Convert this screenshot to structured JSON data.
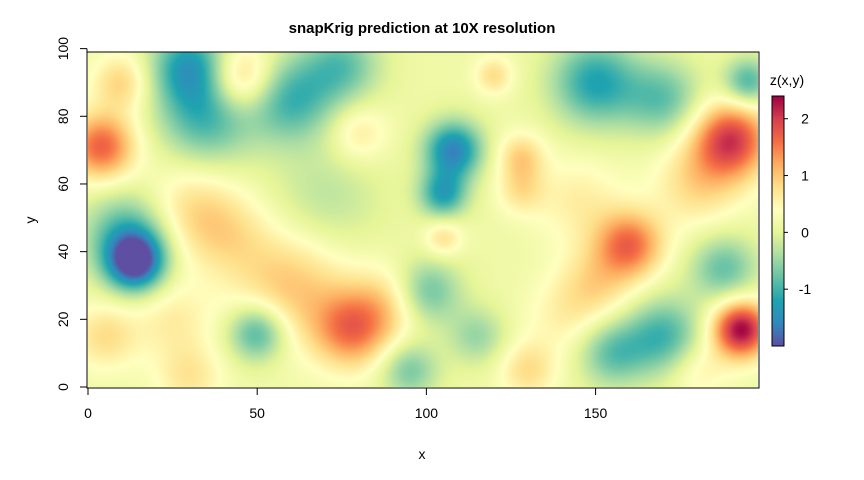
{
  "chart_data": {
    "type": "heatmap",
    "title": "snapKrig prediction at 10X resolution",
    "xlabel": "x",
    "ylabel": "y",
    "xlim": [
      0,
      198
    ],
    "ylim": [
      0,
      99
    ],
    "x_ticks": [
      0,
      50,
      100,
      150
    ],
    "x_tick_labels": [
      "0",
      "50",
      "100",
      "150"
    ],
    "y_ticks": [
      0,
      20,
      40,
      60,
      80,
      100
    ],
    "y_tick_labels": [
      "0",
      "20",
      "40",
      "60",
      "80",
      "100"
    ],
    "colorbar": {
      "label": "z(x,y)",
      "range": [
        -2.0,
        2.4
      ],
      "ticks": [
        -1,
        0,
        1,
        2
      ],
      "tick_labels": [
        "-1",
        "0",
        "1",
        "2"
      ],
      "palette": [
        "#5E4FA2",
        "#3288BD",
        "#1FA4B0",
        "#66C2A5",
        "#ABDDA4",
        "#E6F598",
        "#FFFFBF",
        "#FEE08B",
        "#FDAE61",
        "#F46D43",
        "#D53E4F",
        "#9E0142"
      ]
    },
    "features": [
      {
        "x": 4,
        "y": 71,
        "z": 1.7,
        "s": 7
      },
      {
        "x": 10,
        "y": 90,
        "z": 0.9,
        "s": 6
      },
      {
        "x": 14,
        "y": 37,
        "z": -2.0,
        "s": 6
      },
      {
        "x": 12,
        "y": 45,
        "z": -1.0,
        "s": 9
      },
      {
        "x": 30,
        "y": 95,
        "z": -1.2,
        "s": 8
      },
      {
        "x": 45,
        "y": 91,
        "z": 1.3,
        "s": 7
      },
      {
        "x": 35,
        "y": 80,
        "z": -1.0,
        "s": 10
      },
      {
        "x": 60,
        "y": 85,
        "z": -1.0,
        "s": 9
      },
      {
        "x": 75,
        "y": 95,
        "z": -0.8,
        "s": 8
      },
      {
        "x": 80,
        "y": 75,
        "z": 0.7,
        "s": 6
      },
      {
        "x": 30,
        "y": 52,
        "z": 0.8,
        "s": 10
      },
      {
        "x": 42,
        "y": 45,
        "z": 0.6,
        "s": 9
      },
      {
        "x": 60,
        "y": 30,
        "z": 1.0,
        "s": 12
      },
      {
        "x": 78,
        "y": 17,
        "z": 1.5,
        "s": 8
      },
      {
        "x": 90,
        "y": 25,
        "z": 0.8,
        "s": 8
      },
      {
        "x": 50,
        "y": 16,
        "z": -1.1,
        "s": 6
      },
      {
        "x": 25,
        "y": 20,
        "z": 0.6,
        "s": 8
      },
      {
        "x": 5,
        "y": 15,
        "z": 0.8,
        "s": 7
      },
      {
        "x": 30,
        "y": 3,
        "z": 0.7,
        "s": 7
      },
      {
        "x": 70,
        "y": 55,
        "z": -0.3,
        "s": 12
      },
      {
        "x": 108,
        "y": 70,
        "z": -1.6,
        "s": 6
      },
      {
        "x": 105,
        "y": 57,
        "z": -1.2,
        "s": 5
      },
      {
        "x": 100,
        "y": 28,
        "z": -0.9,
        "s": 7
      },
      {
        "x": 105,
        "y": 44,
        "z": 0.8,
        "s": 4
      },
      {
        "x": 95,
        "y": 5,
        "z": -0.7,
        "s": 6
      },
      {
        "x": 128,
        "y": 68,
        "z": 0.9,
        "s": 5
      },
      {
        "x": 128,
        "y": 58,
        "z": 0.7,
        "s": 5
      },
      {
        "x": 120,
        "y": 92,
        "z": 0.8,
        "s": 4
      },
      {
        "x": 150,
        "y": 90,
        "z": -1.2,
        "s": 9
      },
      {
        "x": 170,
        "y": 85,
        "z": -0.8,
        "s": 8
      },
      {
        "x": 160,
        "y": 42,
        "z": 1.6,
        "s": 7
      },
      {
        "x": 145,
        "y": 55,
        "z": 0.6,
        "s": 9
      },
      {
        "x": 150,
        "y": 30,
        "z": 0.8,
        "s": 8
      },
      {
        "x": 190,
        "y": 73,
        "z": 2.0,
        "s": 8
      },
      {
        "x": 180,
        "y": 60,
        "z": 0.8,
        "s": 9
      },
      {
        "x": 193,
        "y": 17,
        "z": 2.4,
        "s": 6
      },
      {
        "x": 188,
        "y": 35,
        "z": -0.8,
        "s": 7
      },
      {
        "x": 195,
        "y": 90,
        "z": -1.0,
        "s": 5
      },
      {
        "x": 170,
        "y": 15,
        "z": -1.0,
        "s": 8
      },
      {
        "x": 155,
        "y": 10,
        "z": -0.8,
        "s": 7
      },
      {
        "x": 140,
        "y": 20,
        "z": 0.5,
        "s": 8
      },
      {
        "x": 130,
        "y": 5,
        "z": 0.8,
        "s": 6
      },
      {
        "x": 180,
        "y": 5,
        "z": 0.6,
        "s": 6
      },
      {
        "x": 115,
        "y": 15,
        "z": -0.5,
        "s": 6
      }
    ]
  }
}
